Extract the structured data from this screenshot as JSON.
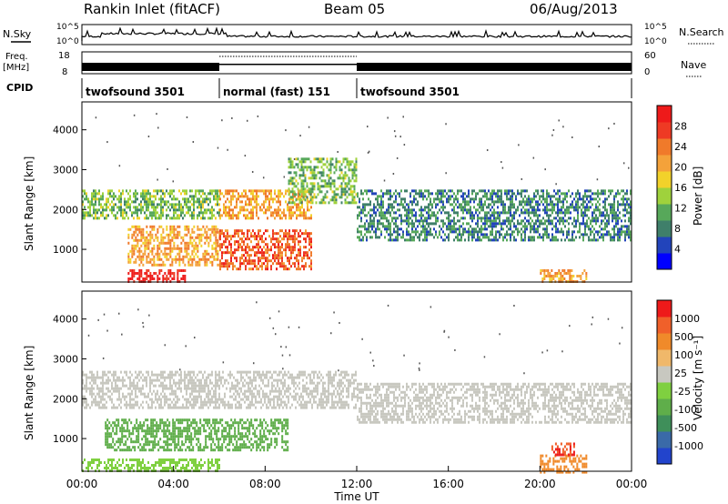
{
  "header": {
    "station": "Rankin Inlet (fitACF)",
    "beam": "Beam 05",
    "date": "06/Aug/2013"
  },
  "nsky_panel": {
    "label": "N.Sky",
    "left_ticks": [
      "10^5",
      "10^0"
    ],
    "right_ticks": [
      "10^5",
      "10^0"
    ],
    "right_label": "N.Search"
  },
  "freq_panel": {
    "label_line1": "Freq.",
    "label_line2": "[MHz]",
    "left_ticks": [
      "18",
      "8"
    ],
    "right_ticks": [
      "60",
      "0"
    ],
    "right_label": "Nave"
  },
  "cpid_panel": {
    "label": "CPID",
    "segments": [
      {
        "name": "twofsound 3501",
        "start_hour": 0,
        "end_hour": 6
      },
      {
        "name": "normal (fast) 151",
        "start_hour": 6,
        "end_hour": 12
      },
      {
        "name": "twofsound 3501",
        "start_hour": 12,
        "end_hour": 24
      }
    ]
  },
  "power_colorbar": {
    "label": "Power [dB]",
    "ticks": [
      "28",
      "24",
      "20",
      "16",
      "12",
      "8",
      "4"
    ],
    "colors": [
      "#0000ff",
      "#2244bb",
      "#3f7f6a",
      "#57a85a",
      "#9fd23c",
      "#f2d22a",
      "#f4a23a",
      "#f07a2a",
      "#ee3a24",
      "#ee1a1a"
    ]
  },
  "velocity_colorbar": {
    "label": "Velocity [m s⁻¹]",
    "ticks": [
      "1000",
      "500",
      "100",
      "25",
      "-25",
      "-100",
      "-500",
      "-1000"
    ],
    "colors": [
      "#2244cc",
      "#3a6aa8",
      "#3f8f5a",
      "#5fae4a",
      "#7fd040",
      "#c8c8c0",
      "#f0b86a",
      "#f08a2a",
      "#f0602a",
      "#ee1a1a"
    ]
  },
  "x_axis": {
    "label": "Time UT",
    "ticks": [
      "00:00",
      "04:00",
      "08:00",
      "12:00",
      "16:00",
      "20:00",
      "00:00"
    ]
  },
  "y_axis": {
    "label": "Slant Range [km]",
    "ticks": [
      "1000",
      "2000",
      "3000",
      "4000"
    ]
  },
  "chart_data": [
    {
      "type": "heatmap",
      "title": "Power",
      "xlabel": "Time UT",
      "ylabel": "Slant Range [km]",
      "xlim_hours": [
        0,
        24
      ],
      "ylim": [
        180,
        4700
      ],
      "colorbar_label": "Power [dB]",
      "colorbar_range": [
        0,
        30
      ],
      "regions": [
        {
          "t0": 0.0,
          "t1": 6.0,
          "r0": 1800,
          "r1": 2500,
          "value": 12
        },
        {
          "t0": 2.0,
          "t1": 6.0,
          "r0": 600,
          "r1": 1600,
          "value": 20
        },
        {
          "t0": 2.0,
          "t1": 4.5,
          "r0": 180,
          "r1": 500,
          "value": 28
        },
        {
          "t0": 6.0,
          "t1": 10.0,
          "r0": 1800,
          "r1": 2500,
          "value": 20
        },
        {
          "t0": 6.0,
          "t1": 10.0,
          "r0": 500,
          "r1": 1500,
          "value": 24
        },
        {
          "t0": 9.0,
          "t1": 12.0,
          "r0": 2200,
          "r1": 3300,
          "value": 12
        },
        {
          "t0": 12.0,
          "t1": 24.0,
          "r0": 1200,
          "r1": 2500,
          "value": 8
        },
        {
          "t0": 20.0,
          "t1": 22.0,
          "r0": 180,
          "r1": 500,
          "value": 20
        }
      ]
    },
    {
      "type": "heatmap",
      "title": "Velocity",
      "xlabel": "Time UT",
      "ylabel": "Slant Range [km]",
      "xlim_hours": [
        0,
        24
      ],
      "ylim": [
        180,
        4700
      ],
      "colorbar_label": "Velocity [m s⁻¹]",
      "colorbar_ticks": [
        1000,
        500,
        100,
        25,
        -25,
        -100,
        -500,
        -1000
      ],
      "regions": [
        {
          "t0": 0.0,
          "t1": 12.0,
          "r0": 1800,
          "r1": 2700,
          "value": 0
        },
        {
          "t0": 12.0,
          "t1": 24.0,
          "r0": 1400,
          "r1": 2400,
          "value": 0
        },
        {
          "t0": 1.0,
          "t1": 9.0,
          "r0": 700,
          "r1": 1500,
          "value": 200
        },
        {
          "t0": 0.0,
          "t1": 6.0,
          "r0": 180,
          "r1": 500,
          "value": 50
        },
        {
          "t0": 20.0,
          "t1": 22.0,
          "r0": 180,
          "r1": 600,
          "value": -300
        },
        {
          "t0": 20.5,
          "t1": 21.5,
          "r0": 600,
          "r1": 900,
          "value": -1000
        }
      ]
    }
  ]
}
